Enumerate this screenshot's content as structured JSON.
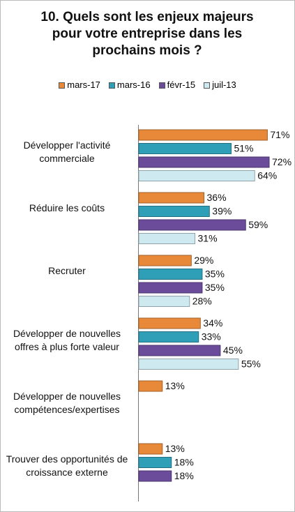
{
  "chart_data": {
    "type": "bar",
    "orientation": "horizontal",
    "title": "10. Quels sont les enjeux majeurs pour votre entreprise dans les prochains mois ?",
    "categories": [
      "Développer l'activité commerciale",
      "Réduire les coûts",
      "Recruter",
      "Développer de nouvelles offres à plus forte valeur",
      "Développer de nouvelles compétences/expertises",
      "Trouver des opportunités de croissance externe"
    ],
    "series": [
      {
        "name": "mars-17",
        "color": "#e8893a",
        "values": [
          71,
          36,
          29,
          34,
          13,
          13
        ],
        "value_labels": [
          "71%",
          "36%",
          "29%",
          "34%",
          "13%",
          "13%"
        ]
      },
      {
        "name": "mars-16",
        "color": "#2f9fb7",
        "values": [
          51,
          39,
          35,
          33,
          null,
          18
        ],
        "value_labels": [
          "51%",
          "39%",
          "35%",
          "33%",
          null,
          "18%"
        ]
      },
      {
        "name": "févr-15",
        "color": "#6b4c9a",
        "values": [
          72,
          59,
          35,
          45,
          null,
          18
        ],
        "value_labels": [
          "72%",
          "59%",
          "35%",
          "45%",
          null,
          "18%"
        ]
      },
      {
        "name": "juil-13",
        "color": "#cfe9f1",
        "values": [
          64,
          31,
          28,
          55,
          null,
          null
        ],
        "value_labels": [
          "64%",
          "31%",
          "28%",
          "55%",
          null,
          null
        ]
      }
    ],
    "legend": "top"
  }
}
